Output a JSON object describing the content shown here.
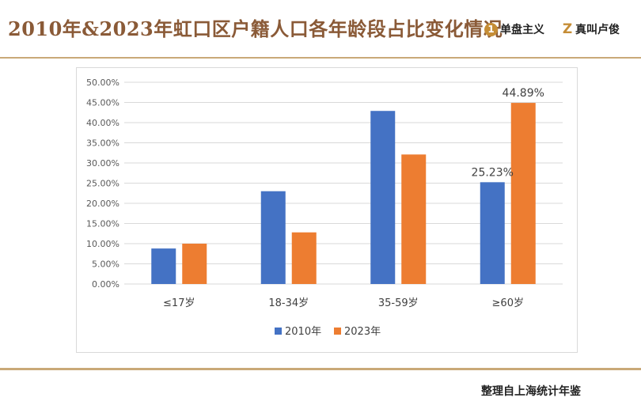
{
  "header": {
    "title": "2010年&2023年虹口区户籍人口各年龄段占比变化情况",
    "brands": [
      {
        "icon": "1",
        "label": "单盘主义"
      },
      {
        "icon": "Z",
        "label": "真叫卢俊"
      }
    ]
  },
  "footer": {
    "source_note": "整理自上海统计年鉴"
  },
  "colors": {
    "series_2010": "#4472c4",
    "series_2023": "#ed7d31",
    "accent": "#c9a978",
    "title": "#8a5a37"
  },
  "chart_data": {
    "type": "bar",
    "title": "",
    "xlabel": "",
    "ylabel": "",
    "categories": [
      "≤17岁",
      "18-34岁",
      "35-59岁",
      "≥60岁"
    ],
    "series": [
      {
        "name": "2010年",
        "values": [
          8.8,
          23.0,
          42.9,
          25.23
        ]
      },
      {
        "name": "2023年",
        "values": [
          10.0,
          12.8,
          32.1,
          44.89
        ]
      }
    ],
    "ylim": [
      0,
      50
    ],
    "yticks": [
      "0.00%",
      "5.00%",
      "10.00%",
      "15.00%",
      "20.00%",
      "25.00%",
      "30.00%",
      "35.00%",
      "40.00%",
      "45.00%",
      "50.00%"
    ],
    "data_labels": [
      {
        "series": 0,
        "index": 3,
        "text": "25.23%"
      },
      {
        "series": 1,
        "index": 3,
        "text": "44.89%"
      }
    ],
    "legend": {
      "position": "bottom",
      "entries": [
        "2010年",
        "2023年"
      ]
    },
    "grid": true
  }
}
